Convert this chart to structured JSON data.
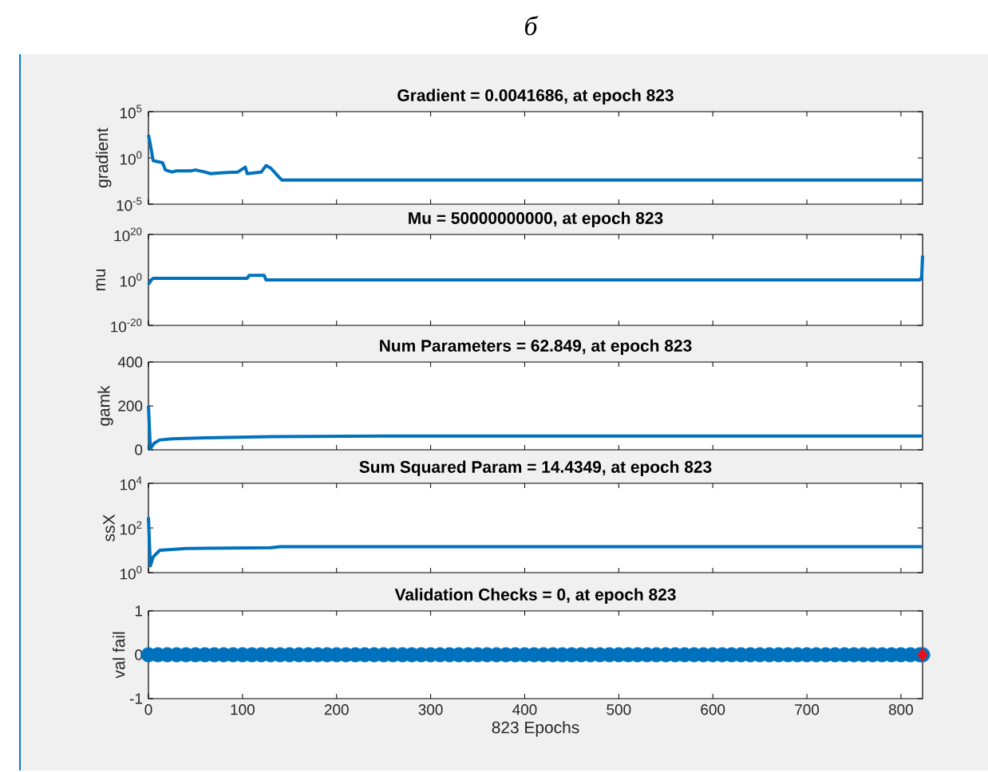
{
  "chart_data": [
    {
      "type": "line",
      "title": "Gradient = 0.0041686, at epoch 823",
      "ylabel": "gradient",
      "annotations": [
        "б"
      ],
      "log": "y",
      "tick_labels": "y",
      "xlim": [
        0,
        823
      ],
      "xticks": [
        0,
        100,
        200,
        300,
        400,
        500,
        600,
        700,
        800
      ],
      "ylim": [
        1e-05,
        100000.0
      ],
      "yticks": [
        {
          "value": 1e-05,
          "label": "10$^{-5}$"
        },
        {
          "value": 1,
          "label": "10$^{0}$"
        },
        {
          "value": 100000.0,
          "label": "10$^{5}$"
        }
      ],
      "series": [
        {
          "color": "#0072bd",
          "x": [
            0,
            2,
            5,
            15,
            18,
            25,
            30,
            45,
            50,
            60,
            66,
            80,
            95,
            103,
            105,
            120,
            125,
            130,
            138,
            142,
            823
          ],
          "values": [
            300,
            30,
            0.5,
            0.3,
            0.05,
            0.03,
            0.04,
            0.04,
            0.05,
            0.03,
            0.02,
            0.025,
            0.03,
            0.1,
            0.02,
            0.03,
            0.15,
            0.08,
            0.01,
            0.004,
            0.004
          ]
        }
      ]
    },
    {
      "type": "line",
      "title": "Mu = 50000000000, at epoch 823",
      "ylabel": "mu",
      "log": "y",
      "tick_labels": "y",
      "xlim": [
        0,
        823
      ],
      "xticks": [
        0,
        100,
        200,
        300,
        400,
        500,
        600,
        700,
        800
      ],
      "ylim": [
        1e-20,
        1e+20
      ],
      "yticks": [
        {
          "value": 1e-20,
          "label": "10$^{-20}$"
        },
        {
          "value": 1,
          "label": "10$^{0}$"
        },
        {
          "value": 1e+20,
          "label": "10$^{20}$"
        }
      ],
      "series": [
        {
          "color": "#0072bd",
          "x": [
            0,
            3,
            5,
            105,
            107,
            123,
            125,
            820,
            821,
            822,
            823
          ],
          "values": [
            0.01,
            1,
            5,
            5,
            100,
            100,
            1,
            1,
            5,
            5,
            50000000000.0
          ]
        }
      ]
    },
    {
      "type": "line",
      "title": "Num Parameters = 62.849, at epoch 823",
      "ylabel": "gamk",
      "tick_labels": "y",
      "xlim": [
        0,
        823
      ],
      "xticks": [
        0,
        100,
        200,
        300,
        400,
        500,
        600,
        700,
        800
      ],
      "ylim": [
        0,
        400
      ],
      "yticks": [
        0,
        200,
        400
      ],
      "series": [
        {
          "color": "#0072bd",
          "x": [
            0,
            2,
            6,
            12,
            25,
            60,
            130,
            250,
            823
          ],
          "values": [
            200,
            5,
            30,
            45,
            50,
            55,
            60,
            63,
            63
          ]
        }
      ]
    },
    {
      "type": "line",
      "title": "Sum Squared Param = 14.4349, at epoch 823",
      "ylabel": "ssX",
      "log": "y",
      "tick_labels": "y",
      "xlim": [
        0,
        823
      ],
      "xticks": [
        0,
        100,
        200,
        300,
        400,
        500,
        600,
        700,
        800
      ],
      "ylim": [
        1,
        10000
      ],
      "yticks": [
        {
          "value": 1,
          "label": "10$^{0}$"
        },
        {
          "value": 100,
          "label": "10$^{2}$"
        },
        {
          "value": 10000,
          "label": "10$^{4}$"
        }
      ],
      "series": [
        {
          "color": "#0072bd",
          "x": [
            0,
            2,
            5,
            12,
            40,
            130,
            140,
            823
          ],
          "values": [
            300,
            2,
            5,
            10,
            12,
            13,
            14.4,
            14.4
          ]
        }
      ]
    },
    {
      "type": "line",
      "title": "Validation Checks = 0, at epoch 823",
      "xlabel": "823 Epochs",
      "ylabel": "val fail",
      "xlim": [
        0,
        823
      ],
      "xticks": [
        0,
        100,
        200,
        300,
        400,
        500,
        600,
        700,
        800
      ],
      "ylim": [
        -1,
        1
      ],
      "yticks": [
        -1,
        0,
        1
      ],
      "series": [
        {
          "type": "scatter",
          "color": "#0072bd",
          "marker": "circle",
          "x": [
            0,
            10,
            20,
            30,
            40,
            50,
            60,
            70,
            80,
            90,
            100,
            110,
            120,
            130,
            140,
            150,
            160,
            170,
            180,
            190,
            200,
            210,
            220,
            230,
            240,
            250,
            260,
            270,
            280,
            290,
            300,
            310,
            320,
            330,
            340,
            350,
            360,
            370,
            380,
            390,
            400,
            410,
            420,
            430,
            440,
            450,
            460,
            470,
            480,
            490,
            500,
            510,
            520,
            530,
            540,
            550,
            560,
            570,
            580,
            590,
            600,
            610,
            620,
            630,
            640,
            650,
            660,
            670,
            680,
            690,
            700,
            710,
            720,
            730,
            740,
            750,
            760,
            770,
            780,
            790,
            800,
            810,
            820,
            823
          ],
          "values": [
            0,
            0,
            0,
            0,
            0,
            0,
            0,
            0,
            0,
            0,
            0,
            0,
            0,
            0,
            0,
            0,
            0,
            0,
            0,
            0,
            0,
            0,
            0,
            0,
            0,
            0,
            0,
            0,
            0,
            0,
            0,
            0,
            0,
            0,
            0,
            0,
            0,
            0,
            0,
            0,
            0,
            0,
            0,
            0,
            0,
            0,
            0,
            0,
            0,
            0,
            0,
            0,
            0,
            0,
            0,
            0,
            0,
            0,
            0,
            0,
            0,
            0,
            0,
            0,
            0,
            0,
            0,
            0,
            0,
            0,
            0,
            0,
            0,
            0,
            0,
            0,
            0,
            0,
            0,
            0,
            0,
            0,
            0,
            0
          ]
        },
        {
          "type": "scatter",
          "color": "#e8101a",
          "marker": "diamond",
          "x": [
            823
          ],
          "values": [
            0
          ]
        }
      ]
    }
  ]
}
